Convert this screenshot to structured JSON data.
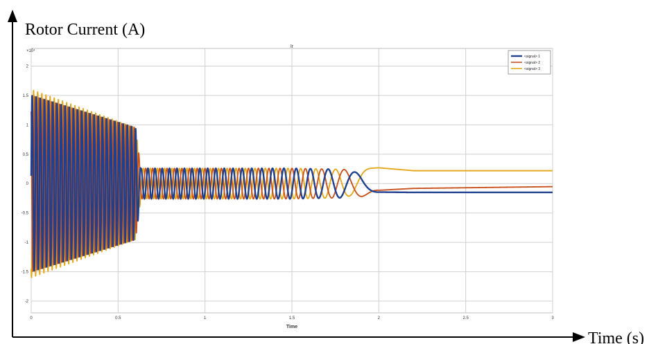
{
  "figure": {
    "ylabel": "Rotor Current (A)",
    "xlabel": "Time (s)"
  },
  "chart_data": {
    "type": "line",
    "title": "Ir",
    "xlabel": "Time",
    "ylabel": "",
    "y_exponent_label": "×10⁴",
    "xlim": [
      0,
      3
    ],
    "ylim": [
      -2.2,
      2.3
    ],
    "x_ticks": [
      "0",
      "0.5",
      "1",
      "1.5",
      "2",
      "2.5",
      "3"
    ],
    "y_ticks": [
      "2",
      "1.5",
      "1",
      "0.5",
      "0",
      "-0.5",
      "-1",
      "-1.5",
      "-2"
    ],
    "grid": true,
    "legend_position": "top-right",
    "series": [
      {
        "name": "<signal> 1",
        "color": "#1f3f8f",
        "phase_deg": 0,
        "x": [
          0,
          0.6,
          0.63,
          1.0,
          1.5,
          1.8,
          1.9,
          2.0,
          2.2,
          3.0
        ],
        "envelope": [
          1.5,
          0.95,
          0.26,
          0.26,
          0.26,
          0.24,
          0.2,
          0.12,
          0.08,
          0.08
        ],
        "offset": [
          0,
          0,
          0,
          0,
          0,
          0,
          -0.03,
          -0.07,
          -0.1,
          -0.1
        ],
        "frequency_hz": [
          42,
          42,
          25,
          22,
          14,
          6,
          4,
          0,
          0,
          0
        ]
      },
      {
        "name": "<signal> 2",
        "color": "#c8521e",
        "phase_deg": 120,
        "x": [
          0,
          0.6,
          0.63,
          1.0,
          1.5,
          1.8,
          1.9,
          2.0,
          2.2,
          3.0
        ],
        "envelope": [
          1.5,
          0.95,
          0.26,
          0.26,
          0.26,
          0.24,
          0.2,
          0.12,
          0.06,
          0.06
        ],
        "offset": [
          0,
          0,
          0,
          0,
          0,
          0,
          -0.02,
          -0.07,
          -0.06,
          -0.03
        ],
        "frequency_hz": [
          42,
          42,
          25,
          22,
          14,
          6,
          4,
          0,
          0,
          0
        ]
      },
      {
        "name": "<signal> 3",
        "color": "#e3a81b",
        "phase_deg": 240,
        "x": [
          0,
          0.6,
          0.63,
          1.0,
          1.5,
          1.8,
          1.9,
          2.0,
          2.2,
          3.0
        ],
        "envelope": [
          1.6,
          0.95,
          0.26,
          0.26,
          0.26,
          0.24,
          0.2,
          0.1,
          0.05,
          0.05
        ],
        "offset": [
          0,
          0,
          0,
          0,
          0,
          0,
          0.05,
          0.17,
          0.17,
          0.17
        ],
        "frequency_hz": [
          42,
          42,
          25,
          22,
          14,
          6,
          4,
          0,
          0,
          0
        ]
      }
    ]
  }
}
